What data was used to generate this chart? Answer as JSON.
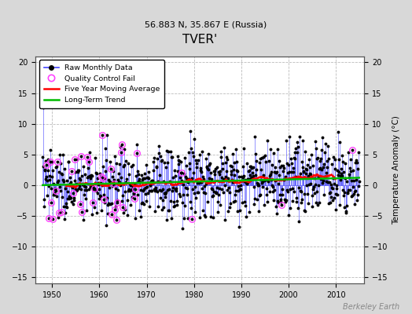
{
  "title": "TVER'",
  "subtitle": "56.883 N, 35.867 E (Russia)",
  "ylabel": "Temperature Anomaly (°C)",
  "xlim": [
    1946.5,
    2016
  ],
  "ylim": [
    -16,
    21
  ],
  "yticks_left": [
    -15,
    -10,
    -5,
    0,
    5,
    10,
    15,
    20
  ],
  "yticks_right": [
    -15,
    -10,
    -5,
    0,
    5,
    10,
    15,
    20
  ],
  "xticks": [
    1950,
    1960,
    1970,
    1980,
    1990,
    2000,
    2010
  ],
  "background_color": "#d8d8d8",
  "plot_bg_color": "#ffffff",
  "raw_line_color": "#4444ff",
  "raw_marker_color": "#000000",
  "qc_fail_color": "#ff44ff",
  "moving_avg_color": "#ff0000",
  "trend_color": "#00bb00",
  "watermark": "Berkeley Earth",
  "start_year": 1948,
  "end_year": 2015,
  "seed": 137
}
